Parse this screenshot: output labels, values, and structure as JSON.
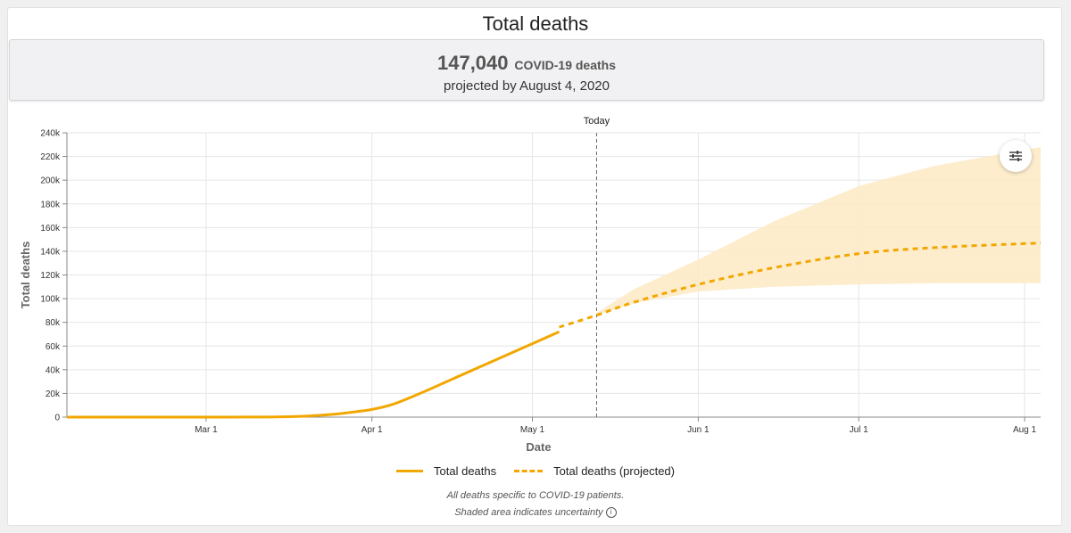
{
  "title": "Total deaths",
  "summary": {
    "value": "147,040",
    "unit_label": "COVID-19 deaths",
    "subtitle": "projected by August 4, 2020"
  },
  "today_label": "Today",
  "legend": {
    "actual": "Total deaths",
    "projected": "Total deaths (projected)"
  },
  "footnotes": {
    "line1": "All deaths specific to COVID-19 patients.",
    "line2": "Shaded area indicates uncertainty"
  },
  "icons": {
    "settings": "sliders-icon",
    "info": "info-icon"
  },
  "colors": {
    "series": "#f2a700",
    "band": "#fdeac4",
    "grid": "#e6e6e6"
  },
  "chart_data": {
    "type": "line",
    "title": "Total deaths",
    "xlabel": "Date",
    "ylabel": "Total deaths",
    "ylim": [
      0,
      240000
    ],
    "xlim": [
      "2020-02-04",
      "2020-08-04"
    ],
    "y_ticks": [
      0,
      20000,
      40000,
      60000,
      80000,
      100000,
      120000,
      140000,
      160000,
      180000,
      200000,
      220000,
      240000
    ],
    "y_tick_labels": [
      "0",
      "20k",
      "40k",
      "60k",
      "80k",
      "100k",
      "120k",
      "140k",
      "160k",
      "180k",
      "200k",
      "220k",
      "240k"
    ],
    "x_ticks": [
      "2020-03-01",
      "2020-04-01",
      "2020-05-01",
      "2020-06-01",
      "2020-07-01",
      "2020-08-01"
    ],
    "x_tick_labels": [
      "Mar 1",
      "Apr 1",
      "May 1",
      "Jun 1",
      "Jul 1",
      "Aug 1"
    ],
    "today": "2020-05-13",
    "grid": true,
    "legend_position": "bottom",
    "series": [
      {
        "name": "Total deaths",
        "style": "solid",
        "x": [
          "2020-02-04",
          "2020-03-01",
          "2020-03-10",
          "2020-03-15",
          "2020-03-20",
          "2020-03-25",
          "2020-03-28",
          "2020-04-01",
          "2020-04-05",
          "2020-04-10",
          "2020-04-15",
          "2020-04-20",
          "2020-04-25",
          "2020-05-01",
          "2020-05-06"
        ],
        "y": [
          0,
          0,
          100,
          300,
          1000,
          2500,
          4000,
          6500,
          11000,
          20000,
          30000,
          40000,
          50000,
          62000,
          72000
        ]
      },
      {
        "name": "Total deaths (projected)",
        "style": "dashed",
        "x": [
          "2020-05-06",
          "2020-05-13",
          "2020-05-20",
          "2020-06-01",
          "2020-06-15",
          "2020-07-01",
          "2020-07-15",
          "2020-08-04"
        ],
        "y": [
          76000,
          86000,
          97000,
          112000,
          126000,
          138000,
          143000,
          147040
        ]
      }
    ],
    "uncertainty": {
      "x": [
        "2020-05-13",
        "2020-05-20",
        "2020-06-01",
        "2020-06-15",
        "2020-07-01",
        "2020-07-15",
        "2020-08-04"
      ],
      "lower": [
        86000,
        96000,
        106000,
        110000,
        112000,
        113000,
        113000
      ],
      "upper": [
        88000,
        108000,
        133000,
        165000,
        195000,
        212000,
        228000
      ]
    }
  }
}
